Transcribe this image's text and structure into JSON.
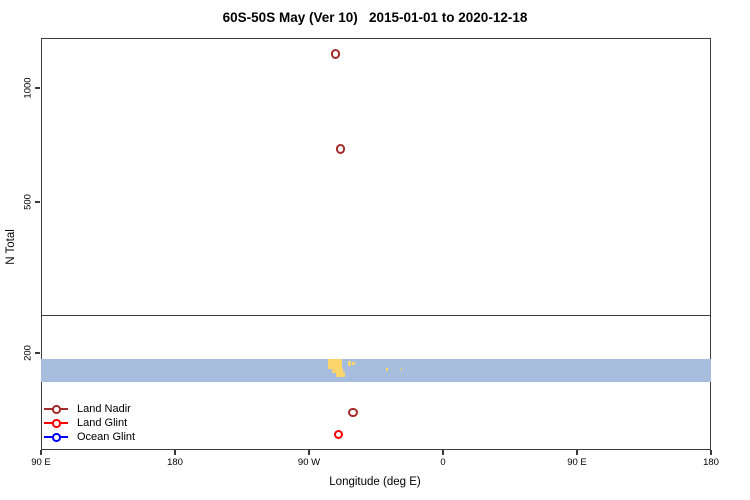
{
  "chart_data": {
    "type": "scatter",
    "title": "60S-50S May (Ver 10)   2015-01-01 to 2020-12-18",
    "xlabel": "Longitude (deg E)",
    "ylabel": "N Total",
    "x_axis": {
      "unit": "deg E",
      "range_deg_e": [
        90,
        540
      ],
      "ticks": [
        {
          "lon": 90,
          "label": "90 E"
        },
        {
          "lon": 180,
          "label": "180"
        },
        {
          "lon": 270,
          "label": "90 W"
        },
        {
          "lon": 360,
          "label": "0"
        },
        {
          "lon": 450,
          "label": "90 E"
        },
        {
          "lon": 540,
          "label": "180"
        }
      ]
    },
    "y_axis": {
      "scale": "log",
      "range": [
        112,
        1355
      ],
      "ticks": [
        {
          "value": 1000,
          "label": "1000"
        },
        {
          "value": 500,
          "label": "500"
        },
        {
          "value": 200,
          "label": "200"
        }
      ]
    },
    "series": [
      {
        "name": "Land Nadir",
        "color": "#a52a2a",
        "points": [
          {
            "lon_deg_e": 288.0,
            "n_total": 1230
          },
          {
            "lon_deg_e": 291.0,
            "n_total": 690
          },
          {
            "lon_deg_e": 299.5,
            "n_total": 139
          }
        ]
      },
      {
        "name": "Land Glint",
        "color": "#ff0000",
        "points": [
          {
            "lon_deg_e": 290.0,
            "n_total": 122
          }
        ]
      },
      {
        "name": "Ocean Glint",
        "color": "#0000ff",
        "points": []
      }
    ],
    "reference_line": {
      "n_total": 252
    },
    "map_band": {
      "description": "ocean/land strip for 60S-50S latitude band",
      "n_range": [
        168,
        193
      ],
      "ocean_color": "#a7bdde",
      "land_color": "#fbd56b",
      "land_segments": [
        {
          "lon0": 282.8,
          "lon1": 292.0,
          "f0": 0.0,
          "f1": 0.45
        },
        {
          "lon0": 285.3,
          "lon1": 292.8,
          "f0": 0.42,
          "f1": 0.62
        },
        {
          "lon0": 288.3,
          "lon1": 293.9,
          "f0": 0.58,
          "f1": 0.78
        },
        {
          "lon0": 296.2,
          "lon1": 298.3,
          "f0": 0.08,
          "f1": 0.3
        },
        {
          "lon0": 299.0,
          "lon1": 300.9,
          "f0": 0.12,
          "f1": 0.27
        },
        {
          "lon0": 321.8,
          "lon1": 322.9,
          "f0": 0.4,
          "f1": 0.55
        },
        {
          "lon0": 331.9,
          "lon1": 332.8,
          "f0": 0.42,
          "f1": 0.52
        }
      ]
    },
    "legend": {
      "position": "bottom-left"
    }
  }
}
